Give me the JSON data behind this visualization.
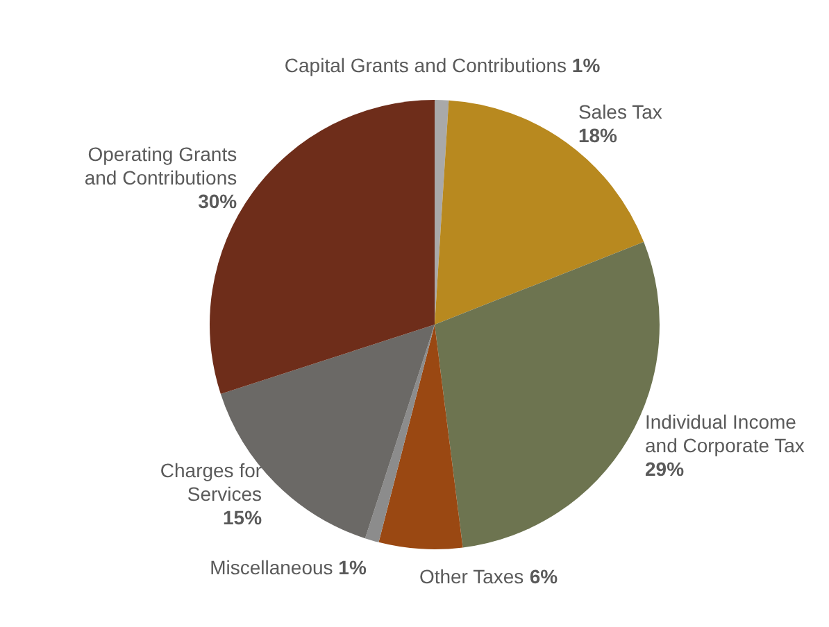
{
  "chart_data": {
    "type": "pie",
    "categories": [
      "Capital Grants and Contributions",
      "Sales Tax",
      "Individual Income and Corporate Tax",
      "Other Taxes",
      "Miscellaneous",
      "Charges for Services",
      "Operating Grants and Contributions"
    ],
    "values": [
      1,
      18,
      29,
      6,
      1,
      15,
      30
    ],
    "value_labels": [
      "1%",
      "18%",
      "29%",
      "6%",
      "1%",
      "15%",
      "30%"
    ],
    "colors": [
      "#a9a9a9",
      "#b8891f",
      "#6d7450",
      "#9a4812",
      "#8c8c8c",
      "#6b6966",
      "#6e2d1a"
    ],
    "legend": false
  }
}
